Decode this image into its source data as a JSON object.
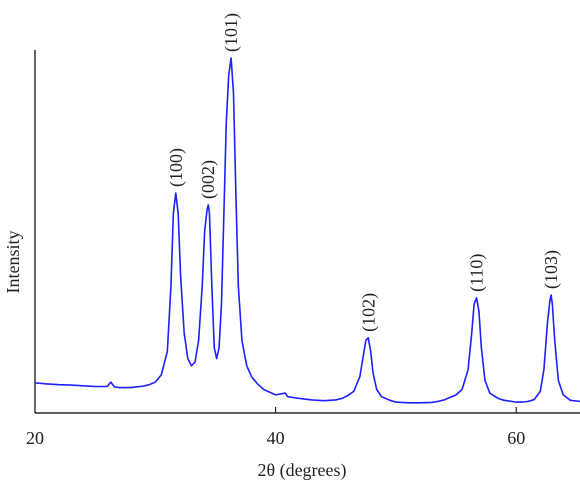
{
  "chart_data": {
    "type": "line",
    "xlabel": "2θ (degrees)",
    "ylabel": "Intensity",
    "color": "#1f1fff",
    "xlim": [
      20,
      65.3
    ],
    "ylim": [
      0,
      100
    ],
    "xticks": [
      20,
      40,
      60
    ],
    "x": [
      20,
      21,
      22,
      23,
      24,
      25,
      26,
      26.3,
      26.6,
      27,
      28,
      29,
      29.5,
      30,
      30.5,
      31,
      31.3,
      31.5,
      31.7,
      31.9,
      32.1,
      32.4,
      32.7,
      33,
      33.3,
      33.6,
      33.9,
      34.1,
      34.3,
      34.4,
      34.5,
      34.7,
      34.9,
      35.1,
      35.3,
      35.5,
      35.7,
      35.9,
      36.1,
      36.3,
      36.5,
      36.7,
      36.9,
      37.2,
      37.6,
      38,
      38.5,
      39,
      40,
      40.8,
      41,
      42,
      43,
      44,
      45,
      45.5,
      46,
      46.5,
      47,
      47.3,
      47.5,
      47.7,
      47.9,
      48.1,
      48.4,
      48.8,
      49.5,
      50,
      51,
      52,
      53,
      53.5,
      54,
      54.5,
      55,
      55.5,
      56,
      56.3,
      56.5,
      56.7,
      56.9,
      57.1,
      57.4,
      57.8,
      58.5,
      59,
      60,
      60.5,
      61,
      61.5,
      62,
      62.3,
      62.6,
      62.8,
      62.9,
      63.0,
      63.2,
      63.5,
      63.9,
      64.5,
      65.3
    ],
    "values": [
      8.3,
      8.0,
      7.8,
      7.7,
      7.5,
      7.3,
      7.3,
      8.5,
      7.2,
      7.0,
      7.0,
      7.4,
      7.8,
      8.5,
      10.5,
      17,
      35,
      55,
      60.6,
      55,
      38,
      22,
      15,
      13,
      14,
      20,
      35,
      50,
      56,
      57.3,
      55,
      35,
      18,
      15,
      18,
      30,
      55,
      80,
      93,
      97.8,
      88,
      60,
      35,
      20,
      13,
      10,
      8,
      6.5,
      5,
      5.5,
      4.5,
      4,
      3.6,
      3.4,
      3.6,
      4,
      4.8,
      6,
      10,
      16,
      20,
      20.7,
      17,
      11,
      6.5,
      4.5,
      3.5,
      3,
      2.8,
      2.8,
      2.9,
      3.2,
      3.6,
      4.3,
      5,
      6.5,
      12,
      22,
      30,
      31.7,
      28,
      18,
      9,
      5.5,
      4,
      3.5,
      3,
      3,
      3.2,
      3.7,
      6,
      12,
      25,
      31,
      32.5,
      30,
      20,
      9,
      5,
      3.5,
      3.2
    ],
    "annotations": [
      {
        "text": "(100)",
        "x": 31.7,
        "y": 60.6
      },
      {
        "text": "(002)",
        "x": 34.4,
        "y": 57.3
      },
      {
        "text": "(101)",
        "x": 36.3,
        "y": 97.8
      },
      {
        "text": "(102)",
        "x": 47.7,
        "y": 20.7
      },
      {
        "text": "(110)",
        "x": 56.7,
        "y": 31.7
      },
      {
        "text": "(103)",
        "x": 62.9,
        "y": 32.5
      }
    ]
  }
}
